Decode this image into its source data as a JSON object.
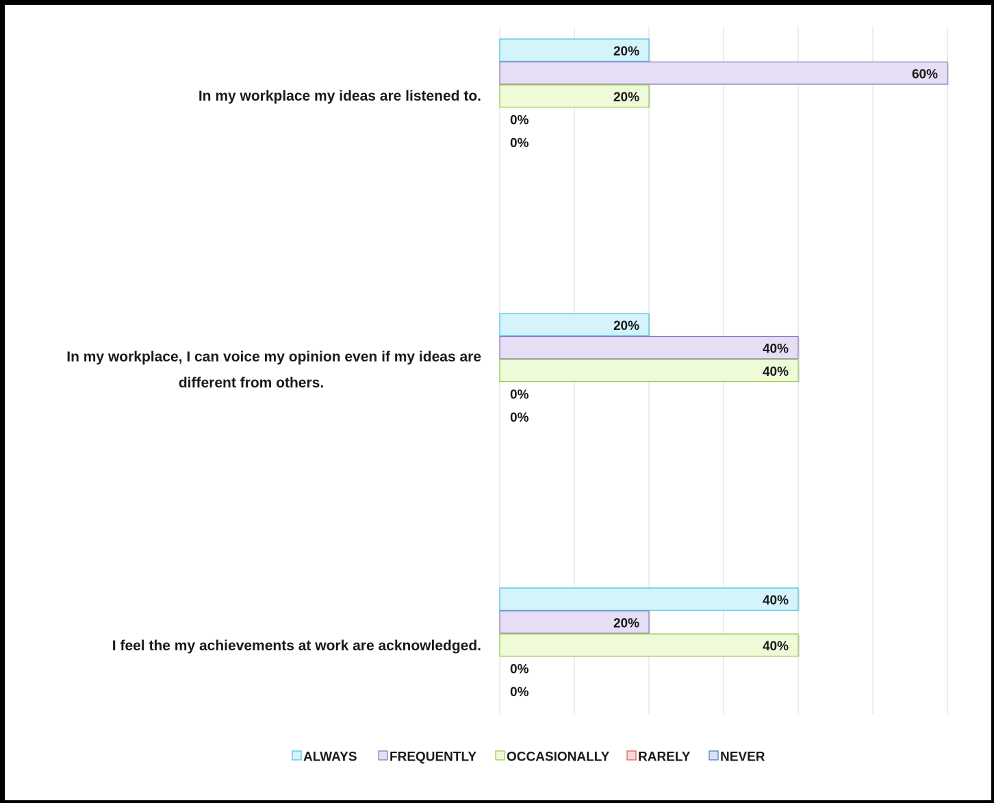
{
  "chart_data": {
    "type": "bar",
    "orientation": "horizontal",
    "categories": [
      [
        "In my workplace my ideas are listened to."
      ],
      [
        "In my workplace, I can voice my opinion even if my ideas are",
        "different from others."
      ],
      [
        "I feel the my achievements at work are acknowledged."
      ]
    ],
    "series": [
      {
        "name": "ALWAYS",
        "color": "#d4f3fb",
        "stroke": "#49c6e5",
        "values": [
          20,
          20,
          40
        ]
      },
      {
        "name": "FREQUENTLY",
        "color": "#e6def5",
        "stroke": "#8e78c0",
        "values": [
          60,
          40,
          20
        ]
      },
      {
        "name": "OCCASIONALLY",
        "color": "#eefad8",
        "stroke": "#9acd4e",
        "values": [
          20,
          40,
          40
        ]
      },
      {
        "name": "RARELY",
        "color": "#fad8d8",
        "stroke": "#e06464",
        "values": [
          0,
          0,
          0
        ]
      },
      {
        "name": "NEVER",
        "color": "#d8e2f6",
        "stroke": "#5a7cc8",
        "values": [
          0,
          0,
          0
        ]
      }
    ],
    "value_suffix": "%",
    "xlim": [
      0,
      60
    ],
    "gridlines": [
      0,
      10,
      20,
      30,
      40,
      50,
      60
    ],
    "grid": true,
    "legend_position": "bottom",
    "title": "",
    "xlabel": "",
    "ylabel": ""
  }
}
